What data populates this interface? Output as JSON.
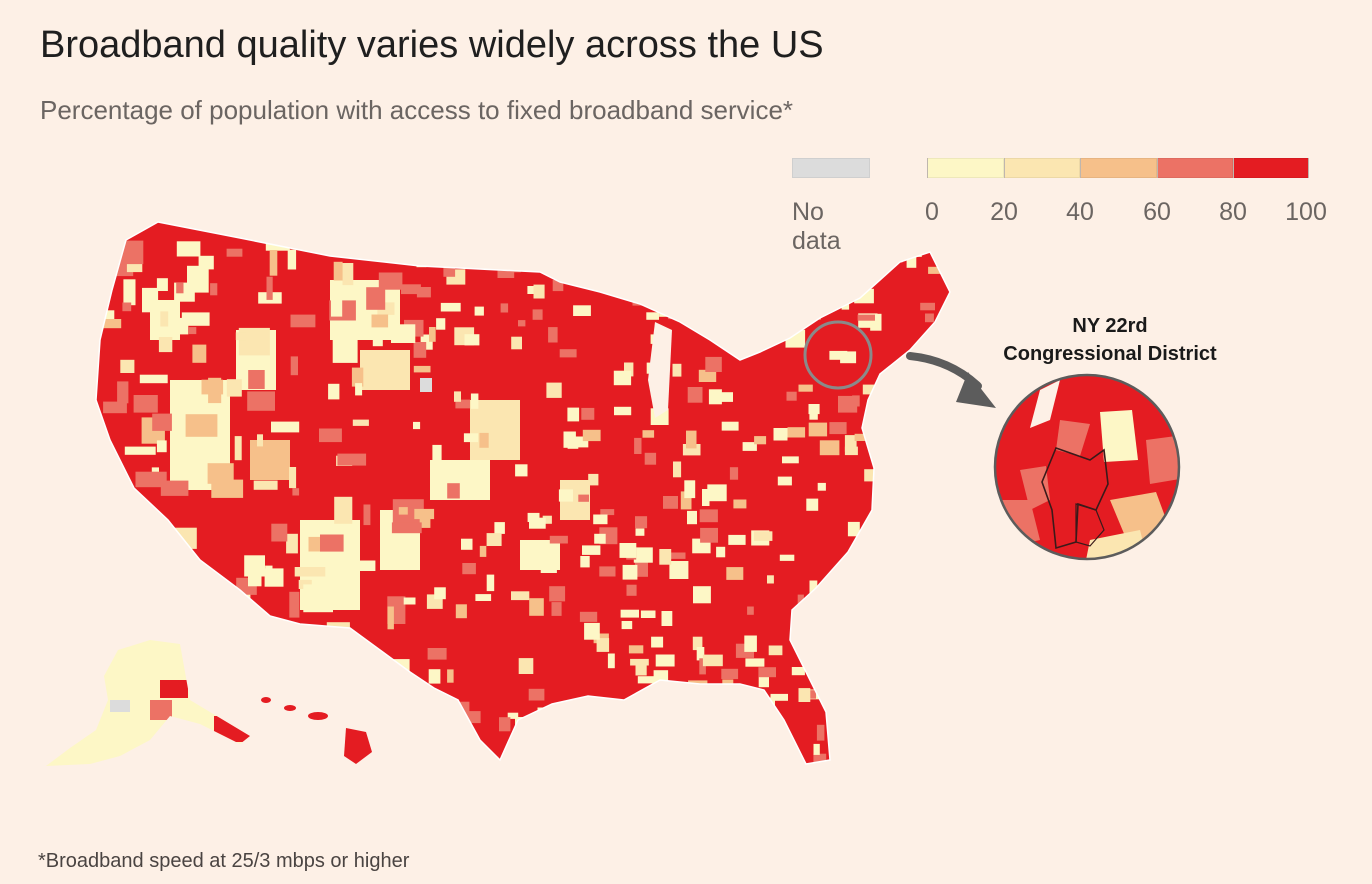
{
  "title": "Broadband quality varies widely across the US",
  "subtitle": "Percentage of population with access to fixed broadband service*",
  "legend": {
    "no_data_label": "No data",
    "no_data_color": "#dcdcdc",
    "ticks": [
      "0",
      "20",
      "40",
      "60",
      "80",
      "100"
    ],
    "bins": [
      {
        "range": "0-20",
        "color": "#fdf7c6"
      },
      {
        "range": "20-40",
        "color": "#fbe6b1"
      },
      {
        "range": "40-60",
        "color": "#f6c08a"
      },
      {
        "range": "60-80",
        "color": "#ec7265"
      },
      {
        "range": "80-100",
        "color": "#e41c22"
      }
    ]
  },
  "inset": {
    "title_line1": "NY 22rd",
    "title_line2": "Congressional District"
  },
  "footnote": "*Broadband speed at 25/3 mbps or higher"
}
